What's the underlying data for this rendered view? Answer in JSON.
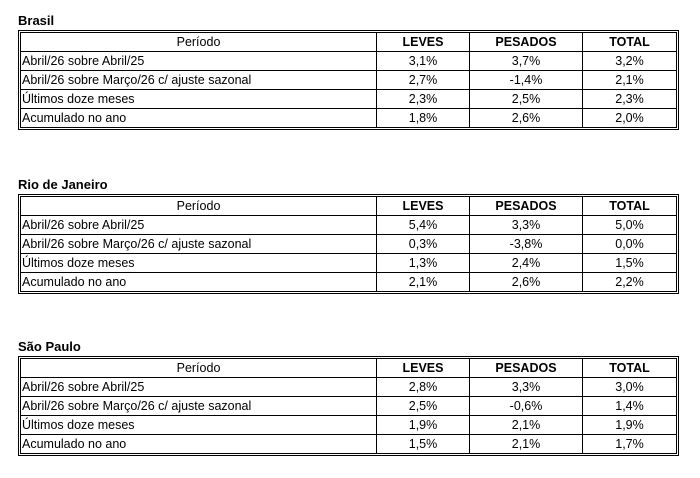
{
  "columns": {
    "period": "Período",
    "leves": "LEVES",
    "pesados": "PESADOS",
    "total": "TOTAL"
  },
  "sections": [
    {
      "title": "Brasil",
      "rows": [
        {
          "period": "Abril/26 sobre Abril/25",
          "leves": "3,1%",
          "pesados": "3,7%",
          "total": "3,2%"
        },
        {
          "period": "Abril/26 sobre Março/26 c/ ajuste sazonal",
          "leves": "2,7%",
          "pesados": "-1,4%",
          "total": "2,1%"
        },
        {
          "period": "Últimos doze meses",
          "leves": "2,3%",
          "pesados": "2,5%",
          "total": "2,3%"
        },
        {
          "period": "Acumulado no ano",
          "leves": "1,8%",
          "pesados": "2,6%",
          "total": "2,0%"
        }
      ]
    },
    {
      "title": "Rio de Janeiro",
      "rows": [
        {
          "period": "Abril/26 sobre Abril/25",
          "leves": "5,4%",
          "pesados": "3,3%",
          "total": "5,0%"
        },
        {
          "period": "Abril/26 sobre Março/26 c/ ajuste sazonal",
          "leves": "0,3%",
          "pesados": "-3,8%",
          "total": "0,0%"
        },
        {
          "period": "Últimos doze meses",
          "leves": "1,3%",
          "pesados": "2,4%",
          "total": "1,5%"
        },
        {
          "period": "Acumulado no ano",
          "leves": "2,1%",
          "pesados": "2,6%",
          "total": "2,2%"
        }
      ]
    },
    {
      "title": "São Paulo",
      "rows": [
        {
          "period": "Abril/26 sobre Abril/25",
          "leves": "2,8%",
          "pesados": "3,3%",
          "total": "3,0%"
        },
        {
          "period": "Abril/26 sobre Março/26 c/ ajuste sazonal",
          "leves": "2,5%",
          "pesados": "-0,6%",
          "total": "1,4%"
        },
        {
          "period": "Últimos doze meses",
          "leves": "1,9%",
          "pesados": "2,1%",
          "total": "1,9%"
        },
        {
          "period": "Acumulado no ano",
          "leves": "1,5%",
          "pesados": "2,1%",
          "total": "1,7%"
        }
      ]
    }
  ]
}
